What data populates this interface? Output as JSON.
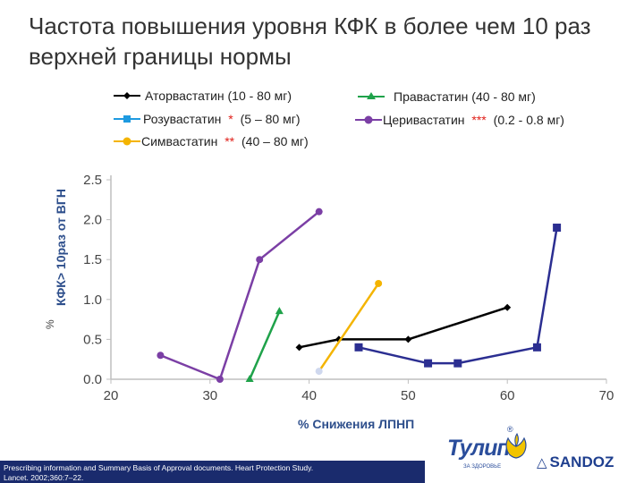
{
  "title": "Частота повышения уровня КФК в более чем 10 раз верхней границы нормы",
  "chart_data": {
    "type": "line",
    "xlabel": "% Снижения ЛПНП",
    "ylabel": "КФК> 10раз от ВГН",
    "ylabel_unit": "%",
    "xlim": [
      20,
      70
    ],
    "ylim": [
      0,
      2.5
    ],
    "xticks": [
      "20",
      "30",
      "40",
      "50",
      "60",
      "70"
    ],
    "yticks": [
      "0.0",
      "0.5",
      "1.0",
      "1.5",
      "2.0",
      "2.5"
    ],
    "series": [
      {
        "id": "atorvastatin",
        "name": "Аторвастатин (10 - 80 мг)",
        "note": "",
        "color": "#000000",
        "marker": "diamond",
        "points": [
          [
            39,
            0.4
          ],
          [
            43,
            0.5
          ],
          [
            50,
            0.5
          ],
          [
            60,
            0.9
          ]
        ]
      },
      {
        "id": "rosuvastatin",
        "name": "Розувастатин",
        "note": "*",
        "dose": "(5 – 80 мг)",
        "color": "#2b2e91",
        "marker": "square",
        "points": [
          [
            45,
            0.4
          ],
          [
            52,
            0.2
          ],
          [
            55,
            0.2
          ],
          [
            63,
            0.4
          ],
          [
            65,
            1.9
          ]
        ]
      },
      {
        "id": "simvastatin",
        "name": "Симвастатин",
        "note": "**",
        "dose": "(40 – 80 мг)",
        "color": "#f4b400",
        "marker": "circle",
        "points": [
          [
            41,
            0.1
          ],
          [
            47,
            1.2
          ]
        ]
      },
      {
        "id": "pravastatin",
        "name": "Правастатин (40 - 80 мг)",
        "note": "",
        "color": "#1fa24a",
        "marker": "triangle",
        "points": [
          [
            34,
            0.0
          ],
          [
            37,
            0.85
          ]
        ]
      },
      {
        "id": "cerivastatin",
        "name": "Церивастатин",
        "note": "***",
        "dose": "(0.2 - 0.8 мг)",
        "color": "#7b3fa5",
        "marker": "circle",
        "points": [
          [
            25,
            0.3
          ],
          [
            31,
            0.0
          ],
          [
            35,
            1.5
          ],
          [
            41,
            2.1
          ]
        ]
      }
    ]
  },
  "footnote": {
    "line1": "Prescribing information and Summary Basis of Approval documents. Heart Protection Study.",
    "line2": "Lancet. 2002;360:7–22."
  },
  "logos": {
    "tulip_text": "Тулип",
    "tulip_sub": "ЗА ЗДОРОВЬЕ",
    "tulip_reg": "®",
    "sandoz_text": "SANDOZ"
  }
}
